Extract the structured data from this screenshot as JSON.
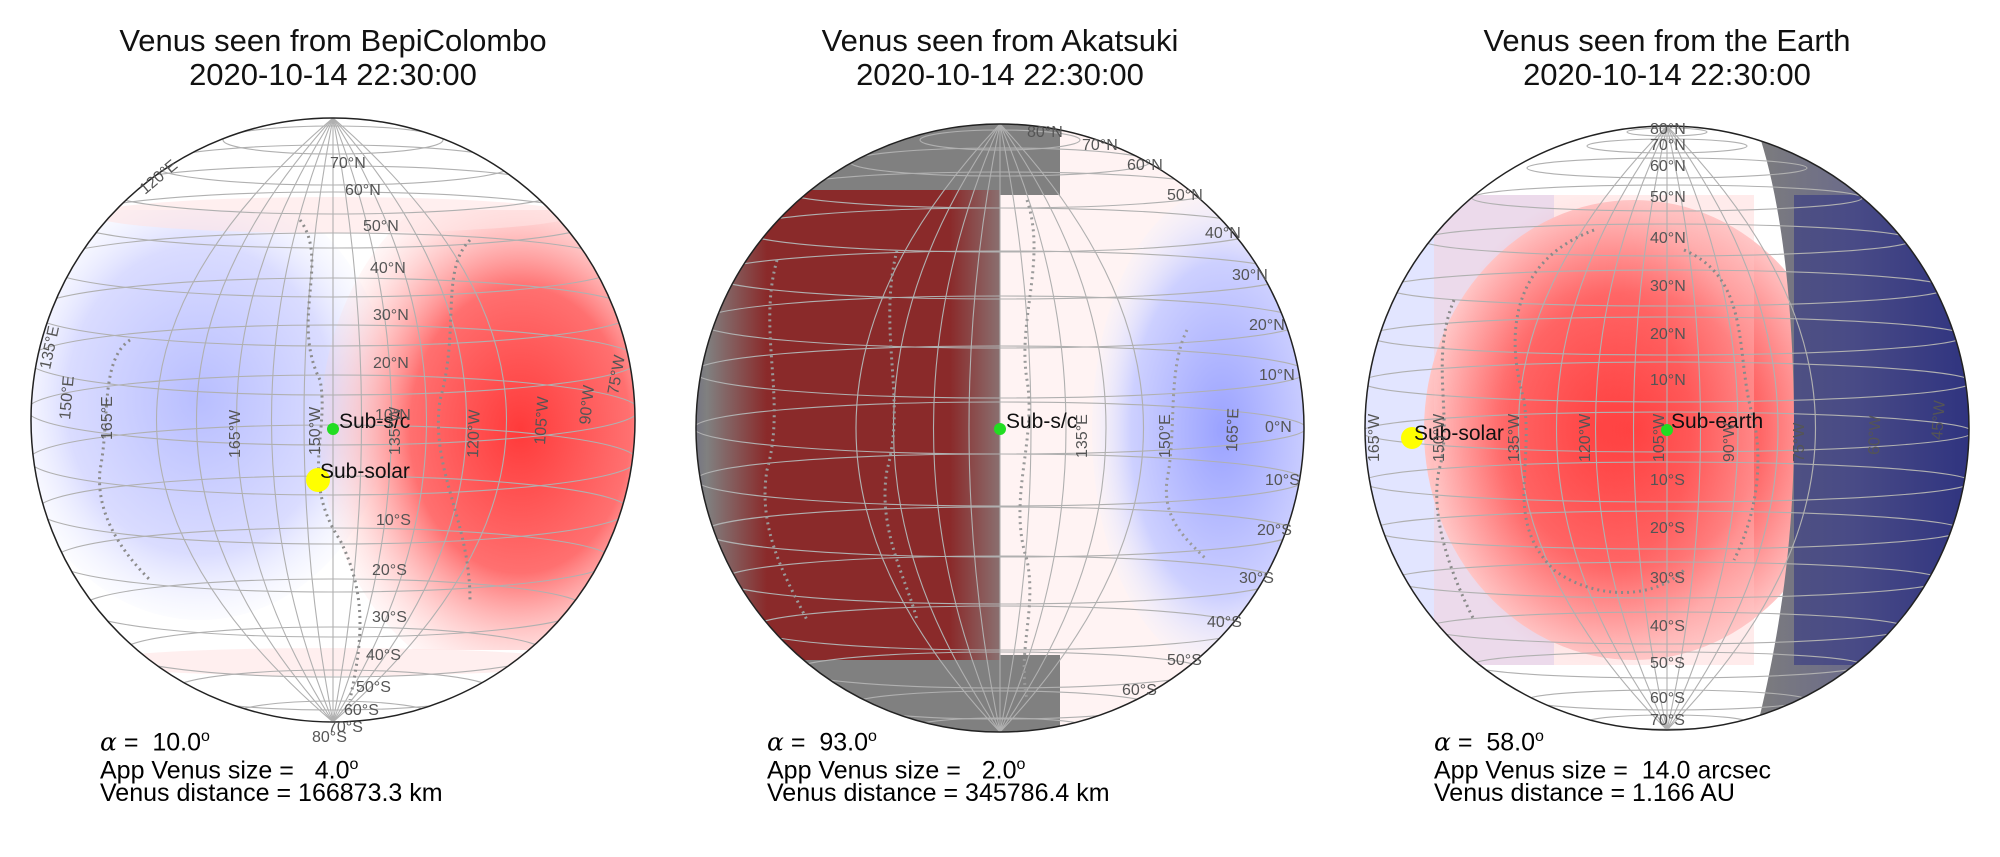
{
  "panels": [
    {
      "title_line1": "Venus seen from BepiColombo",
      "title_line2": "2020-10-14 22:30:00",
      "marker_primary_label": "Sub-s/c",
      "marker_secondary_label": "Sub-solar",
      "alpha_symbol": "α",
      "alpha_value": " =  10.0",
      "size_prefix": "App Venus size =   ",
      "size_value": "4.0",
      "size_unit_sup": "o",
      "distance_text": "Venus distance = 166873.3 km",
      "lat_labels": [
        "70°N",
        "60°N",
        "50°N",
        "40°N",
        "30°N",
        "20°N",
        "10°N",
        "10°S",
        "20°S",
        "30°S",
        "40°S",
        "50°S",
        "60°S",
        "70°S",
        "80°S"
      ],
      "lon_labels": [
        "165°E",
        "150°E",
        "135°E",
        "120°E",
        "165°W",
        "150°W",
        "135°W",
        "120°W",
        "105°W",
        "90°W",
        "75°W"
      ],
      "colors": {
        "left": "#d8dcff",
        "center": "#ffffff",
        "right": "#ff6b6b"
      }
    },
    {
      "title_line1": "Venus seen from Akatsuki",
      "title_line2": "2020-10-14 22:30:00",
      "marker_primary_label": "Sub-s/c",
      "alpha_symbol": "α",
      "alpha_value": " =  93.0",
      "size_prefix": "App Venus size =   ",
      "size_value": "2.0",
      "size_unit_sup": "o",
      "distance_text": "Venus distance = 345786.4 km",
      "lat_labels": [
        "80°N",
        "70°N",
        "60°N",
        "50°N",
        "40°N",
        "30°N",
        "20°N",
        "10°N",
        "0°N",
        "10°S",
        "20°S",
        "30°S",
        "40°S",
        "50°S",
        "60°S"
      ],
      "lon_labels": [
        "135°E",
        "150°E",
        "165°E"
      ],
      "colors": {
        "night": "#8a2a2a",
        "grey": "#808080",
        "center": "#ffffff",
        "right": "#c8ccff"
      }
    },
    {
      "title_line1": "Venus seen from the Earth",
      "title_line2": "2020-10-14 22:30:00",
      "marker_primary_label": "Sub-earth",
      "marker_secondary_label": "Sub-solar",
      "alpha_symbol": "α",
      "alpha_value": " =  58.0",
      "size_prefix": "App Venus size =  ",
      "size_value": "14.0 arcsec",
      "size_unit_sup": "",
      "distance_text": "Venus distance = 1.166 AU",
      "lat_labels": [
        "80°N",
        "70°N",
        "60°N",
        "50°N",
        "40°N",
        "30°N",
        "20°N",
        "10°N",
        "10°S",
        "20°S",
        "30°S",
        "40°S",
        "50°S",
        "60°S",
        "70°S"
      ],
      "lon_labels": [
        "165°W",
        "150°W",
        "135°W",
        "120°W",
        "105°W",
        "90°W",
        "75°W",
        "60°W",
        "45°W"
      ],
      "colors": {
        "left": "#e0e3ff",
        "center": "#ff5e5e",
        "night": "#2a2f7a"
      }
    }
  ]
}
